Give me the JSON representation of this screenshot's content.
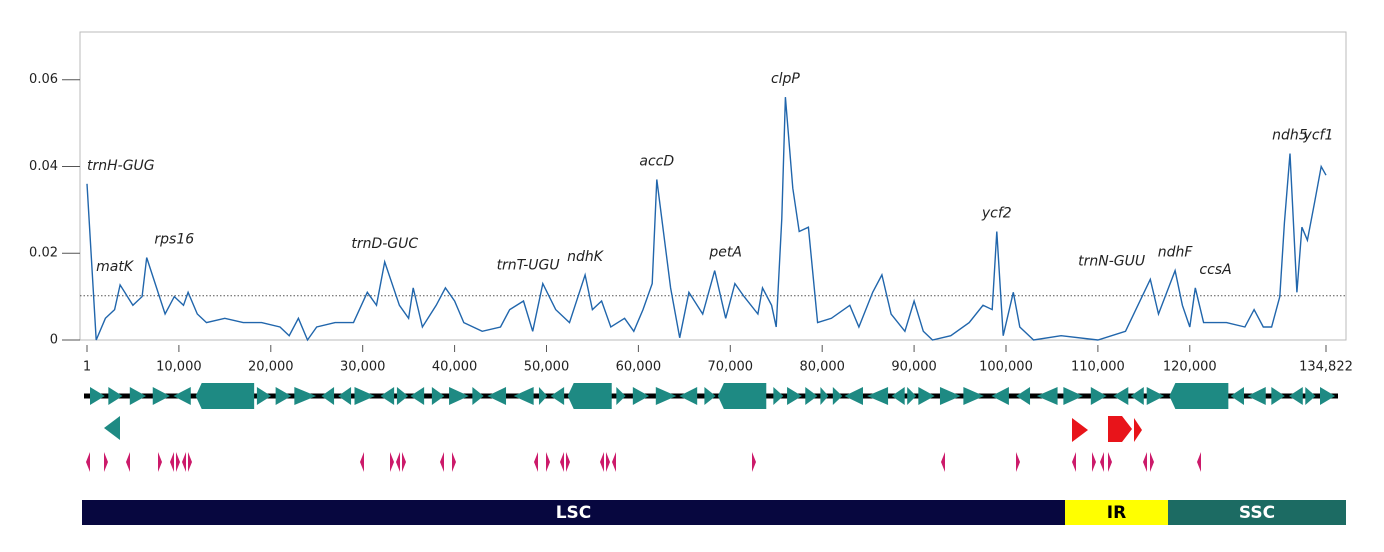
{
  "chart_data": {
    "type": "line",
    "color": "#2166ac",
    "xlim": [
      1,
      134822
    ],
    "ylim": [
      0,
      0.071
    ],
    "xticks": [
      1,
      {
        "value": 10000,
        "label": "10,000"
      },
      {
        "value": 20000,
        "label": "20,000"
      },
      {
        "value": 30000,
        "label": "30,000"
      },
      {
        "value": 40000,
        "label": "40,000"
      },
      {
        "value": 50000,
        "label": "50,000"
      },
      {
        "value": 60000,
        "label": "60,000"
      },
      {
        "value": 70000,
        "label": "70,000"
      },
      {
        "value": 80000,
        "label": "80,000"
      },
      {
        "value": 90000,
        "label": "90,000"
      },
      {
        "value": 100000,
        "label": "100,000"
      },
      {
        "value": 110000,
        "label": "110,000"
      },
      {
        "value": 120000,
        "label": "120,000"
      },
      {
        "value": 134822,
        "label": "134,822"
      }
    ],
    "yticks": [
      0,
      0.02,
      0.04,
      0.06
    ],
    "reference_line": 0.0102,
    "x": [
      1,
      1000,
      2000,
      3000,
      3600,
      5000,
      6000,
      6500,
      8500,
      9500,
      10500,
      11000,
      12000,
      13000,
      15000,
      17000,
      19000,
      21000,
      22000,
      23000,
      24000,
      25000,
      27000,
      29000,
      30500,
      31500,
      32400,
      34000,
      35000,
      35500,
      36500,
      38000,
      39000,
      40000,
      41000,
      43000,
      45000,
      46000,
      47500,
      48500,
      49600,
      51000,
      52500,
      54200,
      55000,
      56000,
      57000,
      58500,
      59500,
      60500,
      61500,
      62000,
      63500,
      64500,
      65500,
      67000,
      68300,
      69500,
      70500,
      71500,
      73000,
      73500,
      74500,
      75000,
      75600,
      76000,
      76800,
      77500,
      78500,
      79500,
      81000,
      83000,
      84000,
      85500,
      86500,
      87500,
      89000,
      90000,
      91000,
      92000,
      94000,
      96000,
      97500,
      98500,
      99000,
      99700,
      100800,
      101500,
      103000,
      106000,
      110000,
      113000,
      115700,
      116600,
      118400,
      119200,
      120000,
      120600,
      121500,
      124000,
      126000,
      127000,
      128000,
      128900,
      129800,
      130300,
      130900,
      131660,
      132200,
      132800,
      133600,
      134300,
      134822
    ],
    "values": [
      0.036,
      0.0,
      0.005,
      0.007,
      0.0127,
      0.008,
      0.01,
      0.019,
      0.006,
      0.01,
      0.008,
      0.011,
      0.006,
      0.004,
      0.005,
      0.004,
      0.004,
      0.003,
      0.001,
      0.005,
      0.0,
      0.003,
      0.004,
      0.004,
      0.011,
      0.008,
      0.018,
      0.008,
      0.005,
      0.012,
      0.003,
      0.008,
      0.012,
      0.009,
      0.004,
      0.002,
      0.003,
      0.007,
      0.009,
      0.002,
      0.013,
      0.007,
      0.004,
      0.015,
      0.007,
      0.009,
      0.003,
      0.005,
      0.002,
      0.007,
      0.013,
      0.037,
      0.012,
      0.0005,
      0.011,
      0.006,
      0.016,
      0.005,
      0.013,
      0.01,
      0.006,
      0.012,
      0.008,
      0.003,
      0.028,
      0.056,
      0.035,
      0.025,
      0.026,
      0.004,
      0.005,
      0.008,
      0.003,
      0.011,
      0.015,
      0.006,
      0.002,
      0.009,
      0.002,
      0.0,
      0.001,
      0.004,
      0.008,
      0.007,
      0.025,
      0.001,
      0.011,
      0.003,
      0.0,
      0.001,
      0.0,
      0.002,
      0.014,
      0.006,
      0.016,
      0.008,
      0.003,
      0.012,
      0.004,
      0.004,
      0.003,
      0.007,
      0.003,
      0.003,
      0.01,
      0.027,
      0.043,
      0.011,
      0.026,
      0.023,
      0.032,
      0.04,
      0.038
    ],
    "annotations": [
      {
        "text": "trnH-GUG",
        "x": 1,
        "y": 0.036
      },
      {
        "text": "matK",
        "x": 3000,
        "y": 0.0127
      },
      {
        "text": "rps16",
        "x": 9500,
        "y": 0.019
      },
      {
        "text": "trnD-GUC",
        "x": 32400,
        "y": 0.018
      },
      {
        "text": "trnT-UGU",
        "x": 48000,
        "y": 0.013
      },
      {
        "text": "ndhK",
        "x": 54200,
        "y": 0.015
      },
      {
        "text": "accD",
        "x": 62000,
        "y": 0.037
      },
      {
        "text": "petA",
        "x": 69500,
        "y": 0.016
      },
      {
        "text": "clpP",
        "x": 76000,
        "y": 0.056
      },
      {
        "text": "ycf2",
        "x": 99000,
        "y": 0.025
      },
      {
        "text": "trnN-GUU",
        "x": 111500,
        "y": 0.014
      },
      {
        "text": "ndhF",
        "x": 118400,
        "y": 0.016
      },
      {
        "text": "ccsA",
        "x": 122800,
        "y": 0.012
      },
      {
        "text": "ndh5",
        "x": 130900,
        "y": 0.043
      },
      {
        "text": "ycf1",
        "x": 134000,
        "y": 0.043
      }
    ],
    "regions": [
      {
        "name": "LSC",
        "color": "#07073f",
        "text_color": "#ffffff"
      },
      {
        "name": "IR",
        "color": "#ffff00",
        "text_color": "#000000"
      },
      {
        "name": "SSC",
        "color": "#1c6b63",
        "text_color": "#ffffff"
      }
    ]
  }
}
